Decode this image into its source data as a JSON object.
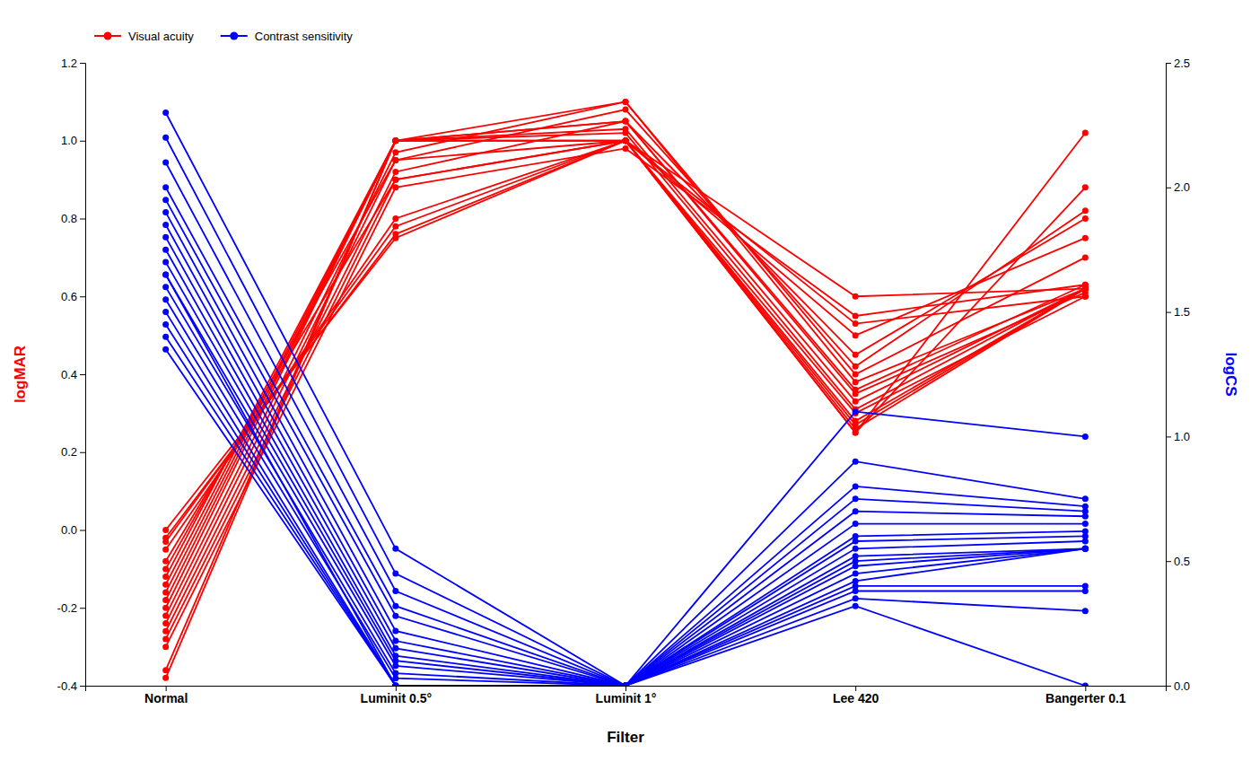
{
  "chart_data": {
    "type": "line",
    "xlabel": "Filter",
    "ylabel": "logMAR",
    "y2label": "logCS",
    "categories": [
      "Normal",
      "Luminit 0.5°",
      "Luminit 1°",
      "Lee 420",
      "Bangerter 0.1"
    ],
    "ylim": [
      -0.4,
      1.2
    ],
    "yticks": [
      -0.4,
      -0.2,
      {
        "value": 0.0,
        "label": "0.0"
      },
      0.2,
      0.4,
      0.6,
      0.8,
      {
        "value": 1.0,
        "label": "1.0"
      },
      1.2
    ],
    "y2lim": [
      0.0,
      2.5
    ],
    "y2ticks": [
      {
        "value": 0.0,
        "label": "0.0"
      },
      0.5,
      {
        "value": 1.0,
        "label": "1.0"
      },
      1.5,
      {
        "value": 2.0,
        "label": "2.0"
      },
      2.5
    ],
    "legend": "top-left",
    "grid": false,
    "marker": "circle",
    "series": [
      {
        "name": "Visual acuity",
        "color": "#FF0000",
        "values": [
          -0.36,
          1.0,
          1.0,
          0.6,
          0.62
        ]
      },
      {
        "name": "Visual acuity",
        "color": "#FF0000",
        "values": [
          -0.3,
          0.88,
          0.98,
          0.55,
          0.63
        ]
      },
      {
        "name": "Visual acuity",
        "color": "#FF0000",
        "values": [
          -0.28,
          0.9,
          1.0,
          0.5,
          0.75
        ]
      },
      {
        "name": "Visual acuity",
        "color": "#FF0000",
        "values": [
          -0.26,
          0.92,
          1.05,
          0.45,
          0.8
        ]
      },
      {
        "name": "Visual acuity",
        "color": "#FF0000",
        "values": [
          -0.24,
          0.95,
          1.08,
          0.42,
          0.82
        ]
      },
      {
        "name": "Visual acuity",
        "color": "#FF0000",
        "values": [
          -0.22,
          0.97,
          1.1,
          0.4,
          0.7
        ]
      },
      {
        "name": "Visual acuity",
        "color": "#FF0000",
        "values": [
          -0.2,
          1.0,
          1.1,
          0.38,
          0.62
        ]
      },
      {
        "name": "Visual acuity",
        "color": "#FF0000",
        "values": [
          -0.18,
          1.0,
          1.05,
          0.36,
          0.63
        ]
      },
      {
        "name": "Visual acuity",
        "color": "#FF0000",
        "values": [
          -0.16,
          1.0,
          1.05,
          0.35,
          0.61
        ]
      },
      {
        "name": "Visual acuity",
        "color": "#FF0000",
        "values": [
          -0.14,
          1.0,
          1.03,
          0.33,
          0.62
        ]
      },
      {
        "name": "Visual acuity",
        "color": "#FF0000",
        "values": [
          -0.12,
          1.0,
          1.02,
          0.31,
          0.62
        ]
      },
      {
        "name": "Visual acuity",
        "color": "#FF0000",
        "values": [
          -0.1,
          0.95,
          1.0,
          0.3,
          0.6
        ]
      },
      {
        "name": "Visual acuity",
        "color": "#FF0000",
        "values": [
          -0.08,
          0.9,
          1.0,
          0.28,
          0.62
        ]
      },
      {
        "name": "Visual acuity",
        "color": "#FF0000",
        "values": [
          -0.05,
          0.8,
          1.0,
          0.27,
          0.62
        ]
      },
      {
        "name": "Visual acuity",
        "color": "#FF0000",
        "values": [
          -0.03,
          0.78,
          1.0,
          0.26,
          0.62
        ]
      },
      {
        "name": "Visual acuity",
        "color": "#FF0000",
        "values": [
          -0.02,
          0.76,
          1.0,
          0.25,
          1.02
        ]
      },
      {
        "name": "Visual acuity",
        "color": "#FF0000",
        "values": [
          0.0,
          0.75,
          1.0,
          0.25,
          0.88
        ]
      },
      {
        "name": "Visual acuity",
        "color": "#FF0000",
        "values": [
          -0.38,
          1.0,
          1.0,
          0.53,
          0.6
        ]
      },
      {
        "name": "Contrast sensitivity",
        "color": "#0000FF",
        "axis": "y2",
        "values": [
          2.3,
          0.55,
          0.0,
          1.1,
          1.0
        ]
      },
      {
        "name": "Contrast sensitivity",
        "color": "#0000FF",
        "axis": "y2",
        "values": [
          2.2,
          0.45,
          0.0,
          0.9,
          0.75
        ]
      },
      {
        "name": "Contrast sensitivity",
        "color": "#0000FF",
        "axis": "y2",
        "values": [
          2.1,
          0.38,
          0.0,
          0.8,
          0.72
        ]
      },
      {
        "name": "Contrast sensitivity",
        "color": "#0000FF",
        "axis": "y2",
        "values": [
          2.0,
          0.32,
          0.0,
          0.75,
          0.7
        ]
      },
      {
        "name": "Contrast sensitivity",
        "color": "#0000FF",
        "axis": "y2",
        "values": [
          1.95,
          0.28,
          0.0,
          0.7,
          0.68
        ]
      },
      {
        "name": "Contrast sensitivity",
        "color": "#0000FF",
        "axis": "y2",
        "values": [
          1.9,
          0.22,
          0.0,
          0.65,
          0.65
        ]
      },
      {
        "name": "Contrast sensitivity",
        "color": "#0000FF",
        "axis": "y2",
        "values": [
          1.85,
          0.18,
          0.0,
          0.6,
          0.62
        ]
      },
      {
        "name": "Contrast sensitivity",
        "color": "#0000FF",
        "axis": "y2",
        "values": [
          1.8,
          0.15,
          0.0,
          0.58,
          0.6
        ]
      },
      {
        "name": "Contrast sensitivity",
        "color": "#0000FF",
        "axis": "y2",
        "values": [
          1.75,
          0.12,
          0.0,
          0.55,
          0.58
        ]
      },
      {
        "name": "Contrast sensitivity",
        "color": "#0000FF",
        "axis": "y2",
        "values": [
          1.7,
          0.1,
          0.0,
          0.52,
          0.55
        ]
      },
      {
        "name": "Contrast sensitivity",
        "color": "#0000FF",
        "axis": "y2",
        "values": [
          1.65,
          0.08,
          0.0,
          0.5,
          0.55
        ]
      },
      {
        "name": "Contrast sensitivity",
        "color": "#0000FF",
        "axis": "y2",
        "values": [
          1.6,
          0.05,
          0.0,
          0.48,
          0.55
        ]
      },
      {
        "name": "Contrast sensitivity",
        "color": "#0000FF",
        "axis": "y2",
        "values": [
          1.55,
          0.03,
          0.0,
          0.45,
          0.55
        ]
      },
      {
        "name": "Contrast sensitivity",
        "color": "#0000FF",
        "axis": "y2",
        "values": [
          1.5,
          0.0,
          0.0,
          0.42,
          0.55
        ]
      },
      {
        "name": "Contrast sensitivity",
        "color": "#0000FF",
        "axis": "y2",
        "values": [
          1.45,
          0.0,
          0.0,
          0.4,
          0.4
        ]
      },
      {
        "name": "Contrast sensitivity",
        "color": "#0000FF",
        "axis": "y2",
        "values": [
          1.4,
          0.0,
          0.0,
          0.38,
          0.38
        ]
      },
      {
        "name": "Contrast sensitivity",
        "color": "#0000FF",
        "axis": "y2",
        "values": [
          1.35,
          0.0,
          0.0,
          0.35,
          0.3
        ]
      },
      {
        "name": "Contrast sensitivity",
        "color": "#0000FF",
        "axis": "y2",
        "values": [
          1.65,
          0.0,
          0.0,
          0.32,
          0.0
        ]
      }
    ]
  }
}
